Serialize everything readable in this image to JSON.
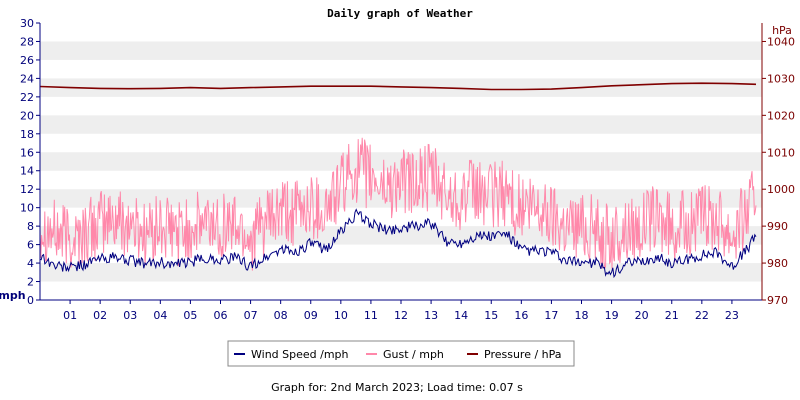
{
  "chart_data": {
    "type": "line",
    "title": "Daily graph of Weather",
    "ylabel_left": "mph",
    "ylabel_right": "hPa",
    "ylim_left": [
      0,
      30
    ],
    "yticks_left": [
      0,
      2,
      4,
      6,
      8,
      10,
      12,
      14,
      16,
      18,
      20,
      22,
      24,
      26,
      28,
      30
    ],
    "ylim_right": [
      970,
      1045
    ],
    "yticks_right": [
      970,
      980,
      990,
      1000,
      1010,
      1020,
      1030,
      1040
    ],
    "xlim": [
      0,
      24
    ],
    "x_tick_labels": [
      "01",
      "02",
      "03",
      "04",
      "05",
      "06",
      "07",
      "08",
      "09",
      "10",
      "11",
      "12",
      "13",
      "14",
      "15",
      "16",
      "17",
      "18",
      "19",
      "20",
      "21",
      "22",
      "23"
    ],
    "grid": "alternating horizontal bands",
    "legend_position": "bottom",
    "series": [
      {
        "name": "Wind Speed /mph",
        "color": "#000080",
        "axis": "left",
        "x": [
          0,
          0.5,
          1,
          1.5,
          2,
          2.5,
          3,
          3.5,
          4,
          4.5,
          5,
          5.5,
          6,
          6.5,
          7,
          7.5,
          8,
          8.5,
          9,
          9.5,
          10,
          10.5,
          11,
          11.5,
          12,
          12.5,
          13,
          13.5,
          14,
          14.5,
          15,
          15.5,
          16,
          16.5,
          17,
          17.5,
          18,
          18.5,
          19,
          19.5,
          20,
          20.5,
          21,
          21.5,
          22,
          22.5,
          23,
          23.5,
          23.8
        ],
        "values": [
          4.8,
          3.7,
          3.5,
          3.9,
          4.5,
          4.6,
          4.3,
          3.9,
          4.1,
          3.8,
          4.1,
          4.5,
          4.4,
          4.6,
          3.6,
          4.6,
          5.5,
          5.2,
          6.1,
          5.5,
          7.4,
          9.3,
          8.3,
          7.5,
          7.8,
          8.0,
          8.3,
          6.3,
          6.2,
          7.0,
          6.9,
          7.2,
          5.4,
          5.3,
          5.2,
          4.1,
          4.2,
          4.0,
          2.8,
          3.9,
          4.1,
          4.6,
          4.0,
          4.3,
          4.9,
          5.2,
          3.6,
          5.5,
          7.0
        ]
      },
      {
        "name": "Gust / mph",
        "color": "#ff88aa",
        "axis": "left",
        "x": [
          0,
          0.5,
          1,
          1.5,
          2,
          2.5,
          3,
          3.5,
          4,
          4.5,
          5,
          5.5,
          6,
          6.5,
          7,
          7.5,
          8,
          8.5,
          9,
          9.5,
          10,
          10.5,
          11,
          11.5,
          12,
          12.5,
          13,
          13.5,
          14,
          14.5,
          15,
          15.5,
          16,
          16.5,
          17,
          17.5,
          18,
          18.5,
          19,
          19.5,
          20,
          20.5,
          21,
          21.5,
          22,
          22.5,
          23,
          23.5,
          23.8
        ],
        "values": [
          8.0,
          7.0,
          6.5,
          7.0,
          8.0,
          8.5,
          8.0,
          7.0,
          7.5,
          7.0,
          7.5,
          8.0,
          8.0,
          8.0,
          6.5,
          8.0,
          9.0,
          9.0,
          10.0,
          9.5,
          12.0,
          14.0,
          13.0,
          12.0,
          12.5,
          12.5,
          13.0,
          11.0,
          11.0,
          11.5,
          11.0,
          11.5,
          9.5,
          9.5,
          9.0,
          8.0,
          8.0,
          7.5,
          6.0,
          7.5,
          8.0,
          8.5,
          7.5,
          8.0,
          8.5,
          9.0,
          7.0,
          9.5,
          11.0
        ]
      },
      {
        "name": "Pressure / hPa",
        "color": "#800000",
        "axis": "right",
        "x": [
          0,
          1,
          2,
          3,
          4,
          5,
          6,
          7,
          8,
          9,
          10,
          11,
          12,
          13,
          14,
          15,
          16,
          17,
          18,
          19,
          20,
          21,
          22,
          23,
          23.8
        ],
        "values": [
          1027.8,
          1027.5,
          1027.3,
          1027.2,
          1027.3,
          1027.5,
          1027.3,
          1027.5,
          1027.7,
          1027.9,
          1027.9,
          1027.9,
          1027.7,
          1027.5,
          1027.3,
          1027.0,
          1027.0,
          1027.1,
          1027.5,
          1028.0,
          1028.3,
          1028.6,
          1028.7,
          1028.6,
          1028.4
        ]
      }
    ],
    "footer": "Graph for: 2nd March 2023; Load time: 0.07 s"
  }
}
